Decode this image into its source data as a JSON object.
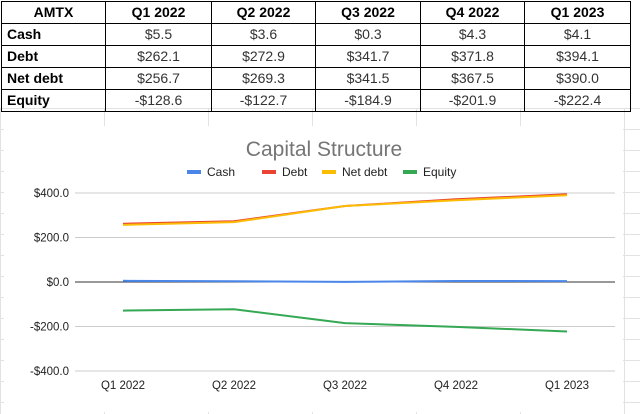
{
  "table": {
    "headers": [
      "AMTX",
      "Q1 2022",
      "Q2 2022",
      "Q3 2022",
      "Q4 2022",
      "Q1 2023"
    ],
    "rows": [
      {
        "label": "Cash",
        "values": [
          "$5.5",
          "$3.6",
          "$0.3",
          "$4.3",
          "$4.1"
        ]
      },
      {
        "label": "Debt",
        "values": [
          "$262.1",
          "$272.9",
          "$341.7",
          "$371.8",
          "$394.1"
        ]
      },
      {
        "label": "Net debt",
        "values": [
          "$256.7",
          "$269.3",
          "$341.5",
          "$367.5",
          "$390.0"
        ]
      },
      {
        "label": "Equity",
        "values": [
          "-$128.6",
          "-$122.7",
          "-$184.9",
          "-$201.9",
          "-$222.4"
        ]
      }
    ]
  },
  "chart_data": {
    "type": "line",
    "title": "Capital Structure",
    "categories": [
      "Q1 2022",
      "Q2 2022",
      "Q3 2022",
      "Q4 2022",
      "Q1 2023"
    ],
    "series": [
      {
        "name": "Cash",
        "color": "#4a86e8",
        "values": [
          5.5,
          3.6,
          0.3,
          4.3,
          4.1
        ]
      },
      {
        "name": "Debt",
        "color": "#ea4335",
        "values": [
          262.1,
          272.9,
          341.7,
          371.8,
          394.1
        ]
      },
      {
        "name": "Net debt",
        "color": "#fbbc04",
        "values": [
          256.7,
          269.3,
          341.5,
          367.5,
          390.0
        ]
      },
      {
        "name": "Equity",
        "color": "#34a853",
        "values": [
          -128.6,
          -122.7,
          -184.9,
          -201.9,
          -222.4
        ]
      }
    ],
    "ylim": [
      -400,
      400
    ],
    "yticks": [
      400,
      200,
      0,
      -200,
      -400
    ],
    "ytick_labels": [
      "$400.0",
      "$200.0",
      "$0.0",
      "-$200.0",
      "-$400.0"
    ],
    "legend_position": "top",
    "grid": true
  }
}
